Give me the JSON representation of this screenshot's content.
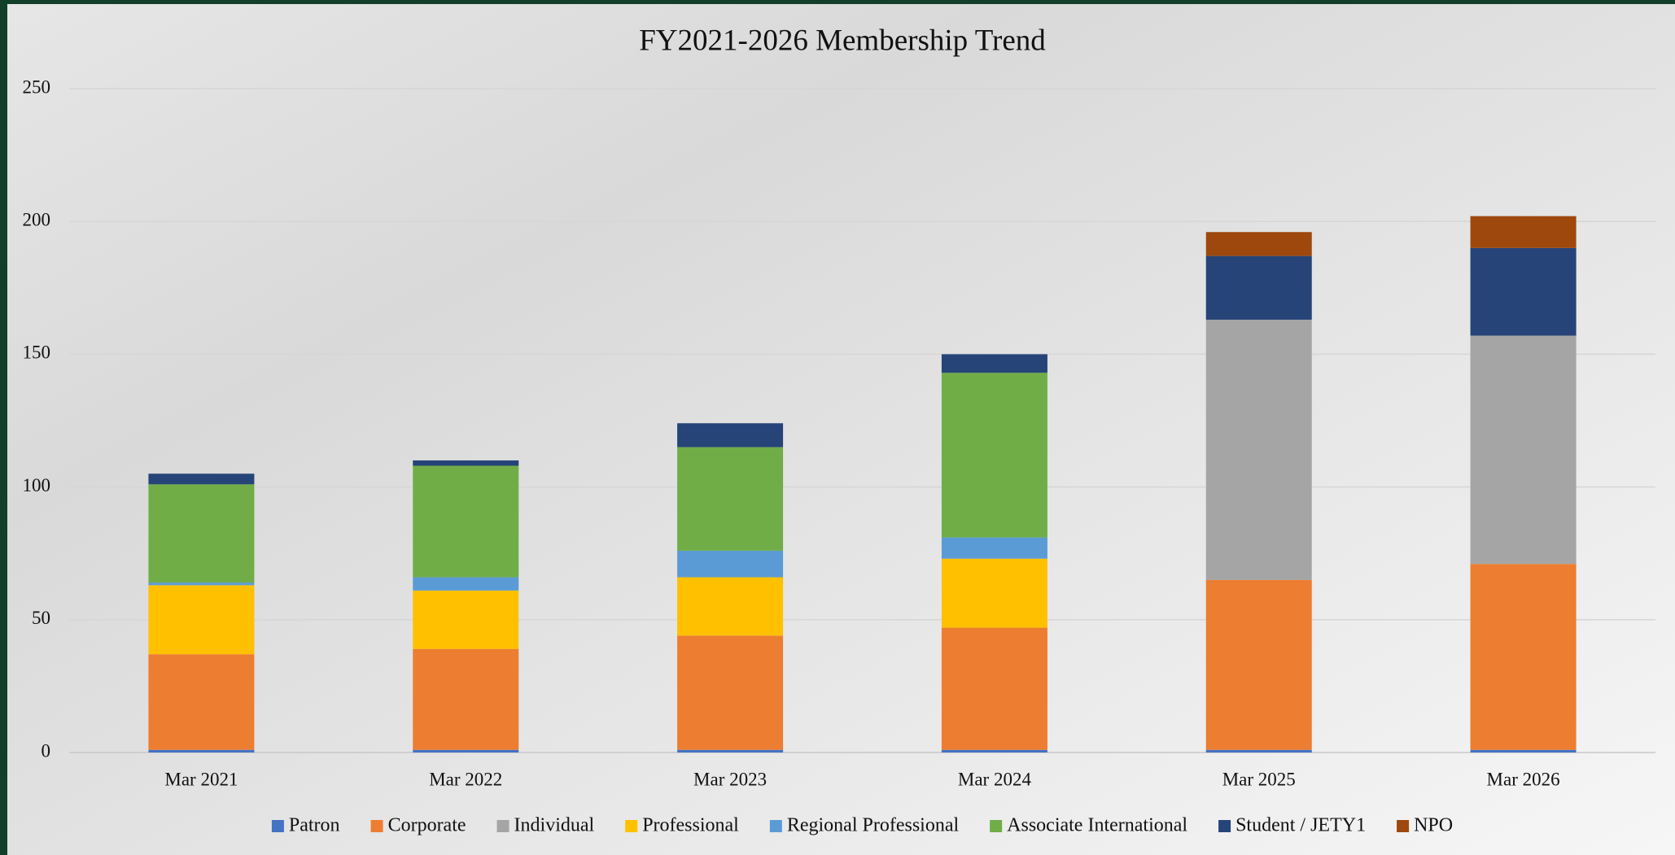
{
  "chart_data": {
    "type": "stacked_bar",
    "title": "FY2021-2026 Membership Trend",
    "categories": [
      "Mar 2021",
      "Mar 2022",
      "Mar 2023",
      "Mar 2024",
      "Mar 2025",
      "Mar 2026"
    ],
    "series": [
      {
        "name": "Patron",
        "color": "#4472c4",
        "values": [
          1,
          1,
          1,
          1,
          1,
          1
        ]
      },
      {
        "name": "Corporate",
        "color": "#ed7d31",
        "values": [
          36,
          38,
          43,
          46,
          64,
          70
        ]
      },
      {
        "name": "Individual",
        "color": "#a5a5a5",
        "values": [
          0,
          0,
          0,
          0,
          98,
          86
        ]
      },
      {
        "name": "Professional",
        "color": "#ffc000",
        "values": [
          26,
          22,
          22,
          26,
          0,
          0
        ]
      },
      {
        "name": "Regional Professional",
        "color": "#5b9bd5",
        "values": [
          1,
          5,
          10,
          8,
          0,
          0
        ]
      },
      {
        "name": "Associate International",
        "color": "#70ad47",
        "values": [
          37,
          42,
          39,
          62,
          0,
          0
        ]
      },
      {
        "name": "Student / JETY1",
        "color": "#264478",
        "values": [
          4,
          2,
          9,
          7,
          24,
          33
        ]
      },
      {
        "name": "NPO",
        "color": "#9e480e",
        "values": [
          0,
          0,
          0,
          0,
          9,
          12
        ]
      }
    ],
    "ylim": [
      0,
      250
    ],
    "yticks": [
      0,
      50,
      100,
      150,
      200,
      250
    ],
    "grid": true,
    "legend": "bottom"
  }
}
